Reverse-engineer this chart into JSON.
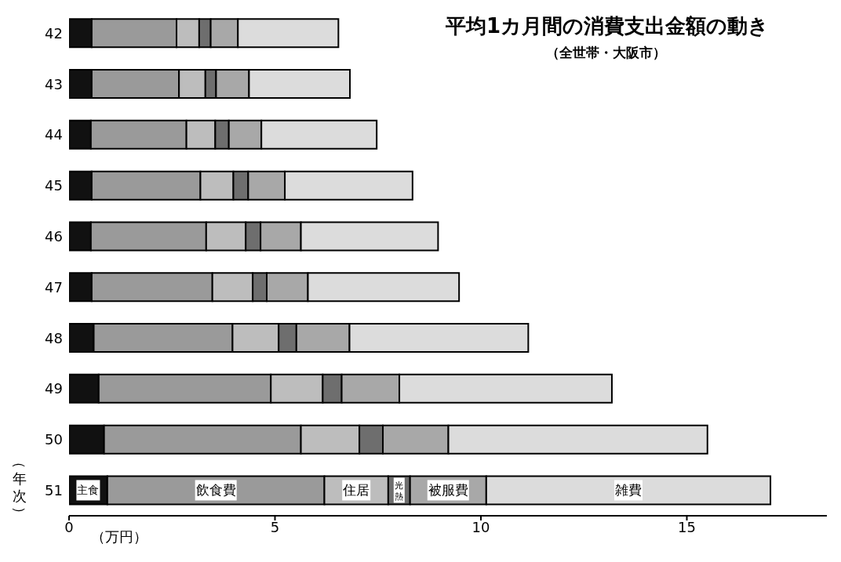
{
  "chart_data": {
    "type": "bar",
    "orientation": "horizontal",
    "stacked": true,
    "title": "平均1カ月間の消費支出金額の動き",
    "subtitle": "（全世帯・大阪市）",
    "xlabel": "（万円）",
    "ylabel": "（年次）",
    "categories": [
      "42",
      "43",
      "44",
      "45",
      "46",
      "47",
      "48",
      "49",
      "50",
      "51"
    ],
    "series": [
      {
        "name": "主食",
        "color": "#111111",
        "values": [
          0.55,
          0.55,
          0.53,
          0.55,
          0.53,
          0.55,
          0.6,
          0.72,
          0.85,
          0.93
        ]
      },
      {
        "name": "飲食費",
        "color": "#9a9a9a",
        "values": [
          2.06,
          2.12,
          2.32,
          2.64,
          2.8,
          2.93,
          3.37,
          4.18,
          4.78,
          5.27
        ]
      },
      {
        "name": "住居",
        "color": "#bdbdbd",
        "values": [
          0.55,
          0.64,
          0.7,
          0.8,
          0.96,
          0.98,
          1.12,
          1.26,
          1.42,
          1.55
        ]
      },
      {
        "name": "光熱",
        "color": "#6e6e6e",
        "values": [
          0.28,
          0.26,
          0.33,
          0.36,
          0.36,
          0.34,
          0.43,
          0.46,
          0.57,
          0.53
        ]
      },
      {
        "name": "被服費",
        "color": "#a8a8a8",
        "values": [
          0.66,
          0.8,
          0.79,
          0.89,
          0.98,
          1.0,
          1.29,
          1.4,
          1.59,
          1.85
        ]
      },
      {
        "name": "雑費",
        "color": "#dcdcdc",
        "values": [
          2.44,
          2.45,
          2.8,
          3.1,
          3.33,
          3.67,
          4.34,
          5.16,
          6.29,
          6.9
        ]
      }
    ],
    "xlim": [
      0,
      18.4
    ],
    "xticks": [
      0,
      5,
      10,
      15
    ]
  }
}
